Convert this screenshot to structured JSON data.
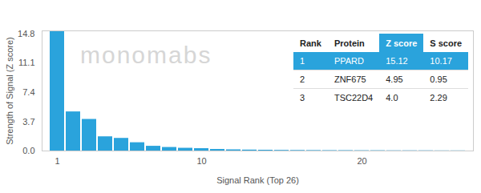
{
  "chart_data": {
    "type": "bar",
    "watermark": "monomabs",
    "x_label": "Signal Rank (Top 26)",
    "y_label": "Strength of Signal (Z score)",
    "x": [
      1,
      2,
      3,
      4,
      5,
      6,
      7,
      8,
      9,
      10,
      11,
      12,
      13,
      14,
      15,
      16,
      17,
      18,
      19,
      20,
      21,
      22,
      23,
      24,
      25,
      26
    ],
    "values": [
      15.12,
      4.95,
      4.0,
      1.8,
      1.6,
      1.05,
      0.6,
      0.45,
      0.35,
      0.3,
      0.2,
      0.15,
      0.12,
      0.1,
      0.08,
      0.07,
      0.06,
      0.05,
      0.05,
      0.04,
      0.04,
      0.03,
      0.03,
      0.03,
      0.02,
      0.02
    ],
    "color": "#2aa3dc",
    "xticks": [
      1,
      10,
      20
    ],
    "ylim": [
      0,
      15.2
    ],
    "yticks": [
      {
        "value": 0,
        "label": "0.0"
      },
      3.7,
      7.4,
      11.1,
      14.8
    ],
    "grid": false,
    "table": {
      "columns": [
        "Rank",
        "Protein",
        "Z score",
        "S score"
      ],
      "highlight_column": "Z score",
      "highlight_row": 1,
      "rows": [
        [
          "1",
          "PPARD",
          "15.12",
          "10.17"
        ],
        [
          "2",
          "ZNF675",
          "4.95",
          "0.95"
        ],
        [
          "3",
          "TSC22D4",
          "4.0",
          "2.29"
        ]
      ]
    }
  }
}
